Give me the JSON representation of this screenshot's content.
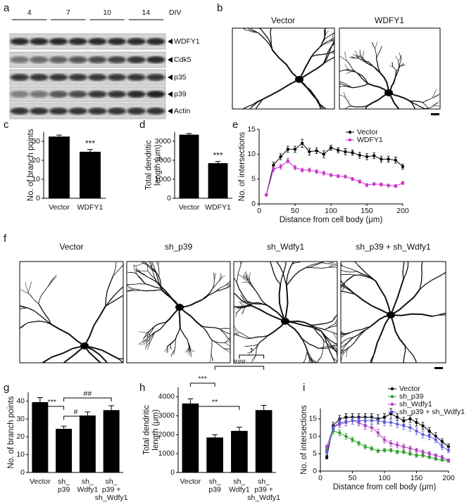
{
  "panel_labels": [
    "a",
    "b",
    "c",
    "d",
    "e",
    "f",
    "g",
    "h",
    "i"
  ],
  "blot": {
    "div_groups": [
      "4",
      "7",
      "10",
      "14"
    ],
    "div_label": "DIV",
    "bands": [
      "WDFY1",
      "Cdk5",
      "p35",
      "p39",
      "Actin"
    ]
  },
  "images_b": [
    "Vector",
    "WDFY1"
  ],
  "images_f": [
    "Vector",
    "sh_p39",
    "sh_Wdfy1",
    "sh_p39 + sh_Wdfy1"
  ],
  "chart_data": [
    {
      "type": "bar",
      "ylabel": [
        "No. of branch points"
      ],
      "categories": [
        [
          "Vector"
        ],
        [
          "WDFY1"
        ]
      ],
      "values": [
        32.5,
        24.5
      ],
      "errors": [
        0.8,
        1.2
      ],
      "color": "#000000",
      "ylim": [
        0,
        35
      ],
      "yticks": [
        0,
        10,
        20,
        30
      ],
      "annotations": [
        "***"
      ]
    },
    {
      "type": "bar",
      "ylabel": [
        "Total dendritic",
        "length (μm)"
      ],
      "categories": [
        [
          "Vector"
        ],
        [
          "WDFY1"
        ]
      ],
      "values": [
        3350,
        1850
      ],
      "errors": [
        60,
        90
      ],
      "color": "#000000",
      "ylim": [
        0,
        3500
      ],
      "yticks": [
        0,
        1000,
        2000,
        3000
      ],
      "annotations": [
        "***"
      ]
    },
    {
      "type": "line",
      "ylabel": [
        "No. of intersections"
      ],
      "xlabel": "Distance from cell body (μm)",
      "x": [
        10,
        20,
        30,
        40,
        50,
        60,
        70,
        80,
        90,
        100,
        110,
        120,
        130,
        140,
        150,
        160,
        170,
        180,
        190,
        200
      ],
      "series": [
        {
          "name": "Vector",
          "color": "#000000",
          "values": [
            1.8,
            7.8,
            9.5,
            11,
            11,
            12.2,
            10.5,
            10.7,
            10,
            11.3,
            10.8,
            10.5,
            10.3,
            9.8,
            9.5,
            9.7,
            9,
            9,
            8.8,
            7.5
          ],
          "errors": [
            0.2,
            0.6,
            0.6,
            0.6,
            0.6,
            0.8,
            0.7,
            0.6,
            0.7,
            0.5,
            0.5,
            0.6,
            0.5,
            0.6,
            0.6,
            0.6,
            0.6,
            0.6,
            0.6,
            0.5
          ]
        },
        {
          "name": "WDFY1",
          "color": "#cc33cc",
          "values": [
            1.8,
            7,
            7.5,
            8.7,
            7.3,
            6.8,
            6.8,
            6.5,
            6.2,
            5.8,
            5.6,
            5.5,
            5,
            4.5,
            3.8,
            4,
            3.9,
            3.7,
            3.6,
            4.2
          ],
          "errors": [
            0.2,
            0.5,
            0.5,
            0.5,
            0.4,
            0.4,
            0.4,
            0.4,
            0.4,
            0.3,
            0.3,
            0.3,
            0.3,
            0.3,
            0.3,
            0.3,
            0.3,
            0.3,
            0.3,
            0.3
          ]
        }
      ],
      "xlim": [
        0,
        200
      ],
      "xticks": [
        0,
        50,
        100,
        150,
        200
      ],
      "ylim": [
        0,
        15
      ],
      "yticks": [
        0,
        5,
        10,
        15
      ],
      "legend": "top-right"
    },
    {
      "type": "bar",
      "ylabel": [
        "No. of branch points"
      ],
      "categories": [
        [
          "Vector"
        ],
        [
          "sh_",
          "p39"
        ],
        [
          "sh_",
          "Wdfy1"
        ],
        [
          "sh_",
          "p39 +",
          "sh_Wdfy1"
        ]
      ],
      "values": [
        39.5,
        24.5,
        32,
        35
      ],
      "errors": [
        2.5,
        1.5,
        2,
        2.5
      ],
      "color": "#000000",
      "ylim": [
        0,
        45
      ],
      "yticks": [
        0,
        10,
        20,
        30,
        40
      ],
      "annotations": [
        "***",
        "#",
        "##"
      ]
    },
    {
      "type": "bar",
      "ylabel": [
        "Total dendritic",
        "length (μm)"
      ],
      "categories": [
        [
          "Vector"
        ],
        [
          "sh_",
          "p39"
        ],
        [
          "sh_",
          "Wdfy1"
        ],
        [
          "sh_",
          "p39 +",
          "sh_Wdfy1"
        ]
      ],
      "values": [
        3650,
        1850,
        2200,
        3300
      ],
      "errors": [
        250,
        150,
        200,
        250
      ],
      "color": "#000000",
      "ylim": [
        0,
        4500
      ],
      "yticks": [
        0,
        1000,
        2000,
        3000,
        4000
      ],
      "annotations": [
        "***",
        "**",
        "###",
        "†"
      ]
    },
    {
      "type": "line",
      "ylabel": [
        "No. of intersections"
      ],
      "xlabel": "Distance from cell body (μm)",
      "x": [
        10,
        20,
        30,
        40,
        50,
        60,
        70,
        80,
        90,
        100,
        110,
        120,
        130,
        140,
        150,
        160,
        170,
        180,
        190,
        200
      ],
      "series": [
        {
          "name": "Vector",
          "color": "#000000",
          "values": [
            4,
            13,
            15,
            15.5,
            15.5,
            15.5,
            15.5,
            15.5,
            15,
            15.5,
            16.5,
            15.5,
            14.5,
            15,
            14,
            13,
            11.5,
            10,
            8.5,
            7
          ],
          "errors": [
            0.5,
            1,
            1,
            1,
            1,
            1,
            1,
            1,
            1.2,
            1,
            1.5,
            1,
            1,
            1,
            1,
            1,
            1,
            1,
            0.8,
            0.8
          ]
        },
        {
          "name": "sh_p39",
          "color": "#2ca02c",
          "values": [
            6,
            11.5,
            11,
            10,
            9,
            8,
            7,
            6.5,
            5.8,
            6,
            6,
            5.5,
            5.5,
            5,
            4.5,
            4.5,
            4,
            3.5,
            3.2,
            3
          ],
          "errors": [
            0.5,
            0.8,
            0.8,
            0.8,
            0.7,
            0.6,
            0.6,
            0.6,
            0.5,
            0.5,
            0.5,
            0.5,
            0.5,
            0.5,
            0.5,
            0.5,
            0.4,
            0.4,
            0.4,
            0.4
          ]
        },
        {
          "name": "sh_Wdfy1",
          "color": "#b040c0",
          "values": [
            7,
            12.5,
            13.5,
            14,
            14.5,
            14,
            13,
            12.5,
            11,
            9,
            8,
            7.5,
            7,
            6.5,
            6,
            5.5,
            5,
            4.5,
            4,
            3
          ],
          "errors": [
            0.5,
            1,
            1,
            1,
            1,
            1,
            1,
            1,
            1,
            0.9,
            0.8,
            0.8,
            0.7,
            0.7,
            0.6,
            0.6,
            0.6,
            0.5,
            0.5,
            0.5
          ]
        },
        {
          "name": "sh_p39 + sh_Wdfy1",
          "color": "#6060e0",
          "values": [
            5.5,
            12.5,
            14,
            14,
            14.5,
            14.5,
            14.5,
            14.5,
            14.5,
            14,
            14,
            13.5,
            13,
            12.5,
            11.5,
            10.5,
            10,
            9,
            7,
            6
          ],
          "errors": [
            0.5,
            1,
            1,
            1,
            1,
            1,
            1,
            1,
            1,
            1,
            1,
            1,
            1,
            1,
            1,
            1,
            1,
            0.8,
            0.8,
            0.7
          ]
        }
      ],
      "xlim": [
        0,
        200
      ],
      "xticks": [
        0,
        50,
        100,
        150,
        200
      ],
      "ylim": [
        0,
        18
      ],
      "yticks": [
        0,
        5,
        10,
        15
      ],
      "legend": "top-right"
    }
  ]
}
